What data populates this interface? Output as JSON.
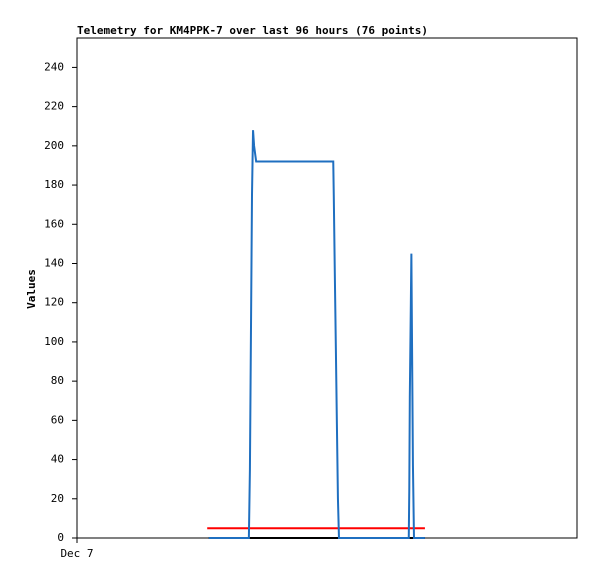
{
  "chart_data": {
    "type": "line",
    "title": "Telemetry for KM4PPK-7 over last 96 hours (76 points)",
    "y_label": "Values",
    "xlim": [
      0,
      96
    ],
    "xticks": [
      {
        "value": 0,
        "label": "Dec 7"
      }
    ],
    "ylim": [
      0,
      255
    ],
    "yticks": [
      0,
      20,
      40,
      60,
      80,
      100,
      120,
      140,
      160,
      180,
      200,
      220,
      240
    ],
    "grid": false,
    "series": [
      {
        "color": "#000000",
        "x": [
          25.3,
          66.8
        ],
        "values": [
          0,
          0
        ]
      },
      {
        "color": "#ff0000",
        "x": [
          25.0,
          66.8
        ],
        "values": [
          5,
          5
        ]
      },
      {
        "color": "#1f6fc0",
        "x": [
          25.3,
          33.0,
          33.2,
          33.4,
          33.6,
          33.8,
          34.0,
          34.4,
          49.2,
          49.3,
          49.5,
          49.7,
          49.9,
          50.1,
          50.3,
          63.7,
          63.8,
          63.9,
          64.1,
          64.2,
          64.3,
          64.5,
          64.7,
          66.8
        ],
        "values": [
          0,
          0,
          35,
          105,
          175,
          208,
          200,
          192,
          192,
          175,
          135,
          97,
          58,
          20,
          0,
          0,
          25,
          72,
          120,
          145,
          108,
          37,
          0,
          0
        ]
      }
    ]
  }
}
